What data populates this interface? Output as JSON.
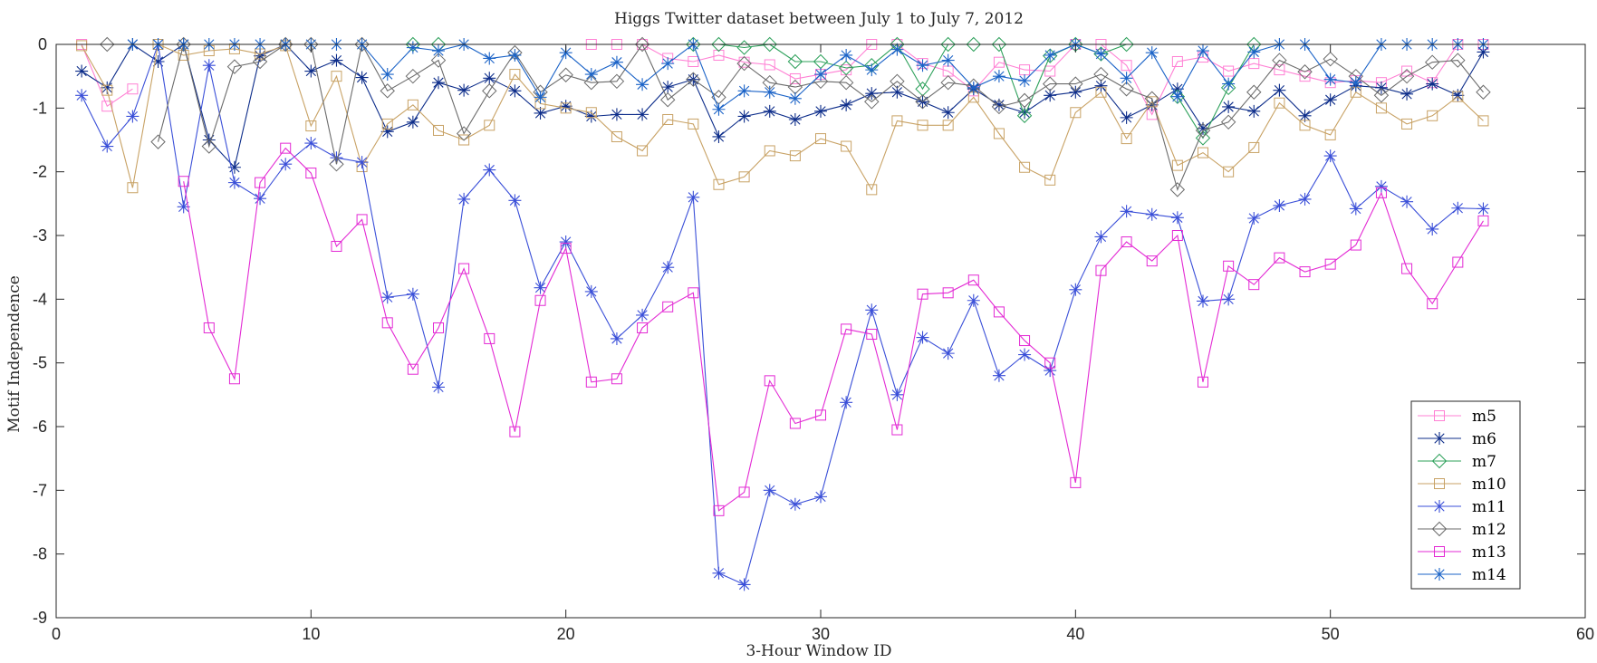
{
  "chart_data": {
    "type": "line",
    "title": "Higgs Twitter dataset between July 1 to July 7, 2012",
    "xlabel": "3-Hour Window ID",
    "ylabel": "Motif Independence",
    "xlim": [
      0,
      60
    ],
    "ylim": [
      -9,
      0
    ],
    "xticks": [
      0,
      10,
      20,
      30,
      40,
      50,
      60
    ],
    "yticks": [
      0,
      -1,
      -2,
      -3,
      -4,
      -5,
      -6,
      -7,
      -8,
      -9
    ],
    "grid": false,
    "legend_position": "bottom-right",
    "series": [
      {
        "name": "m5",
        "color": "#ff80d4",
        "marker": "square",
        "x": [
          1,
          2,
          3,
          21,
          22,
          23,
          24,
          25,
          26,
          27,
          28,
          29,
          30,
          31,
          32,
          33,
          34,
          35,
          36,
          37,
          38,
          39,
          40,
          41,
          42,
          43,
          44,
          45,
          46,
          47,
          48,
          49,
          50,
          51,
          52,
          53,
          54,
          55,
          56
        ],
        "y": [
          0,
          -0.97,
          -0.7,
          0,
          0,
          0,
          -0.22,
          -0.27,
          -0.17,
          -0.28,
          -0.32,
          -0.54,
          -0.47,
          -0.4,
          0,
          0,
          -0.3,
          -0.42,
          -0.73,
          -0.28,
          -0.4,
          -0.42,
          0,
          0,
          -0.33,
          -1.1,
          -0.27,
          -0.2,
          -0.42,
          -0.3,
          -0.4,
          -0.5,
          -0.6,
          -0.57,
          -0.6,
          -0.42,
          -0.6,
          0,
          0
        ]
      },
      {
        "name": "m6",
        "color": "#0d2d8a",
        "marker": "asterisk",
        "x": [
          1,
          2,
          3,
          4,
          5,
          6,
          7,
          8,
          9,
          10,
          11,
          12,
          13,
          14,
          15,
          16,
          17,
          18,
          19,
          20,
          21,
          22,
          23,
          24,
          25,
          26,
          27,
          28,
          29,
          30,
          31,
          32,
          33,
          34,
          35,
          36,
          37,
          38,
          39,
          40,
          41,
          42,
          43,
          44,
          45,
          46,
          47,
          48,
          49,
          50,
          51,
          52,
          53,
          54,
          55,
          56
        ],
        "y": [
          -0.42,
          -0.68,
          0,
          -0.27,
          0,
          -1.5,
          -1.93,
          -0.18,
          0,
          -0.42,
          -0.25,
          -0.52,
          -1.37,
          -1.22,
          -0.6,
          -0.72,
          -0.53,
          -0.73,
          -1.08,
          -0.97,
          -1.13,
          -1.1,
          -1.1,
          -0.67,
          -0.55,
          -1.45,
          -1.13,
          -1.05,
          -1.18,
          -1.05,
          -0.95,
          -0.77,
          -0.75,
          -0.9,
          -1.07,
          -0.7,
          -0.95,
          -1.07,
          -0.8,
          -0.75,
          -0.65,
          -1.15,
          -0.95,
          -0.7,
          -1.32,
          -0.98,
          -1.05,
          -0.72,
          -1.12,
          -0.87,
          -0.65,
          -0.68,
          -0.78,
          -0.62,
          -0.8,
          -0.12
        ]
      },
      {
        "name": "m7",
        "color": "#2ca05a",
        "marker": "diamond",
        "x": [
          14,
          15,
          25,
          26,
          27,
          28,
          29,
          30,
          31,
          32,
          33,
          34,
          35,
          36,
          37,
          38,
          39,
          40,
          41,
          42,
          44,
          45,
          46,
          47
        ],
        "y": [
          0,
          0,
          0,
          0,
          -0.05,
          0,
          -0.27,
          -0.27,
          -0.37,
          -0.33,
          0,
          -0.7,
          0,
          0,
          0,
          -1.12,
          -0.18,
          0,
          -0.15,
          0,
          -0.82,
          -1.47,
          -0.68,
          0
        ]
      },
      {
        "name": "m10",
        "color": "#c8a265",
        "marker": "square",
        "x": [
          1,
          2,
          3,
          4,
          5,
          6,
          7,
          8,
          9,
          10,
          11,
          12,
          13,
          14,
          15,
          16,
          17,
          18,
          19,
          20,
          21,
          22,
          23,
          24,
          25,
          26,
          27,
          28,
          29,
          30,
          31,
          32,
          33,
          34,
          35,
          36,
          37,
          38,
          39,
          40,
          41,
          42,
          43,
          44,
          45,
          46,
          47,
          48,
          49,
          50,
          51,
          52,
          53,
          54,
          55,
          56
        ],
        "y": [
          -0.02,
          -0.72,
          -2.25,
          0,
          -0.17,
          -0.1,
          -0.07,
          -0.15,
          -0.02,
          -1.28,
          -0.5,
          -1.92,
          -1.25,
          -0.95,
          -1.35,
          -1.5,
          -1.27,
          -0.47,
          -0.93,
          -1.0,
          -1.07,
          -1.45,
          -1.67,
          -1.18,
          -1.25,
          -2.2,
          -2.08,
          -1.67,
          -1.75,
          -1.48,
          -1.6,
          -2.28,
          -1.2,
          -1.27,
          -1.27,
          -0.83,
          -1.4,
          -1.93,
          -2.13,
          -1.07,
          -0.75,
          -1.48,
          -0.9,
          -1.9,
          -1.7,
          -2.0,
          -1.62,
          -0.92,
          -1.27,
          -1.42,
          -0.75,
          -1.0,
          -1.25,
          -1.12,
          -0.82,
          -1.2
        ]
      },
      {
        "name": "m11",
        "color": "#3a4fd8",
        "marker": "asterisk",
        "x": [
          1,
          2,
          3,
          4,
          5,
          6,
          7,
          8,
          9,
          10,
          11,
          12,
          13,
          14,
          15,
          16,
          17,
          18,
          19,
          20,
          21,
          22,
          23,
          24,
          25,
          26,
          27,
          28,
          29,
          30,
          31,
          32,
          33,
          34,
          35,
          36,
          37,
          38,
          39,
          40,
          41,
          42,
          43,
          44,
          45,
          46,
          47,
          48,
          49,
          50,
          51,
          52,
          53,
          54,
          55,
          56
        ],
        "y": [
          -0.8,
          -1.6,
          -1.13,
          0,
          -2.55,
          -0.33,
          -2.17,
          -2.42,
          -1.88,
          -1.55,
          -1.78,
          -1.85,
          -3.97,
          -3.92,
          -5.38,
          -2.43,
          -1.97,
          -2.45,
          -3.82,
          -3.1,
          -3.88,
          -4.62,
          -4.25,
          -3.5,
          -2.4,
          -8.3,
          -8.48,
          -7.0,
          -7.22,
          -7.1,
          -5.62,
          -4.17,
          -5.5,
          -4.6,
          -4.85,
          -4.02,
          -5.2,
          -4.87,
          -5.12,
          -3.85,
          -3.02,
          -2.62,
          -2.67,
          -2.72,
          -4.03,
          -4.0,
          -2.73,
          -2.53,
          -2.43,
          -1.75,
          -2.58,
          -2.23,
          -2.47,
          -2.9,
          -2.57,
          -2.58
        ]
      },
      {
        "name": "m12",
        "color": "#6b6b6b",
        "marker": "diamond",
        "x": [
          2,
          4,
          5,
          6,
          7,
          8,
          9,
          10,
          11,
          12,
          13,
          14,
          15,
          16,
          17,
          18,
          19,
          20,
          21,
          22,
          23,
          24,
          25,
          26,
          27,
          28,
          29,
          30,
          31,
          32,
          33,
          34,
          35,
          36,
          37,
          38,
          39,
          40,
          41,
          42,
          43,
          44,
          45,
          46,
          47,
          48,
          49,
          50,
          51,
          52,
          53,
          54,
          55,
          56
        ],
        "y": [
          0,
          -1.53,
          0,
          -1.6,
          -0.35,
          -0.27,
          0,
          0,
          -1.88,
          0,
          -0.73,
          -0.5,
          -0.25,
          -1.4,
          -0.73,
          -0.13,
          -0.75,
          -0.48,
          -0.6,
          -0.58,
          0,
          -0.87,
          -0.55,
          -0.83,
          -0.3,
          -0.6,
          -0.67,
          -0.58,
          -0.6,
          -0.9,
          -0.58,
          -0.9,
          -0.6,
          -0.65,
          -0.98,
          -0.88,
          -0.62,
          -0.62,
          -0.47,
          -0.7,
          -0.85,
          -2.28,
          -1.35,
          -1.22,
          -0.75,
          -0.25,
          -0.43,
          -0.23,
          -0.5,
          -0.8,
          -0.5,
          -0.28,
          -0.25,
          -0.75
        ]
      },
      {
        "name": "m13",
        "color": "#e32ad4",
        "marker": "square",
        "x": [
          5,
          6,
          7,
          8,
          9,
          10,
          11,
          12,
          13,
          14,
          15,
          16,
          17,
          18,
          19,
          20,
          21,
          22,
          23,
          24,
          25,
          26,
          27,
          28,
          29,
          30,
          31,
          32,
          33,
          34,
          35,
          36,
          37,
          38,
          39,
          40,
          41,
          42,
          43,
          44,
          45,
          46,
          47,
          48,
          49,
          50,
          51,
          52,
          53,
          54,
          55,
          56
        ],
        "y": [
          -2.15,
          -4.45,
          -5.25,
          -2.17,
          -1.63,
          -2.02,
          -3.17,
          -2.75,
          -4.37,
          -5.1,
          -4.45,
          -3.52,
          -4.62,
          -6.08,
          -4.02,
          -3.2,
          -5.3,
          -5.25,
          -4.45,
          -4.12,
          -3.9,
          -7.32,
          -7.03,
          -5.28,
          -5.95,
          -5.82,
          -4.47,
          -4.55,
          -6.05,
          -3.92,
          -3.9,
          -3.7,
          -4.2,
          -4.65,
          -5.0,
          -6.88,
          -3.55,
          -3.1,
          -3.4,
          -3.0,
          -5.3,
          -3.48,
          -3.77,
          -3.35,
          -3.57,
          -3.45,
          -3.15,
          -2.33,
          -3.52,
          -4.07,
          -3.42,
          -2.77
        ]
      },
      {
        "name": "m14",
        "color": "#1b63c7",
        "marker": "asterisk",
        "x": [
          3,
          4,
          5,
          6,
          7,
          8,
          9,
          10,
          11,
          12,
          13,
          14,
          15,
          16,
          17,
          18,
          19,
          20,
          21,
          22,
          23,
          24,
          25,
          26,
          27,
          28,
          29,
          30,
          31,
          32,
          33,
          34,
          35,
          36,
          37,
          38,
          39,
          40,
          41,
          42,
          43,
          44,
          45,
          46,
          47,
          48,
          49,
          50,
          51,
          52,
          53,
          54,
          55,
          56
        ],
        "y": [
          0,
          0,
          0,
          0,
          0,
          0,
          0,
          0,
          0,
          0,
          -0.47,
          -0.05,
          -0.1,
          0,
          -0.22,
          -0.17,
          -0.83,
          -0.13,
          -0.47,
          -0.28,
          -0.63,
          -0.3,
          0,
          -1.02,
          -0.73,
          -0.75,
          -0.85,
          -0.47,
          -0.17,
          -0.4,
          -0.08,
          -0.33,
          -0.25,
          -0.68,
          -0.5,
          -0.57,
          -0.17,
          0,
          -0.15,
          -0.53,
          -0.13,
          -0.82,
          -0.1,
          -0.62,
          -0.12,
          0,
          0,
          -0.55,
          -0.6,
          0,
          0,
          0,
          0,
          0
        ]
      }
    ]
  }
}
